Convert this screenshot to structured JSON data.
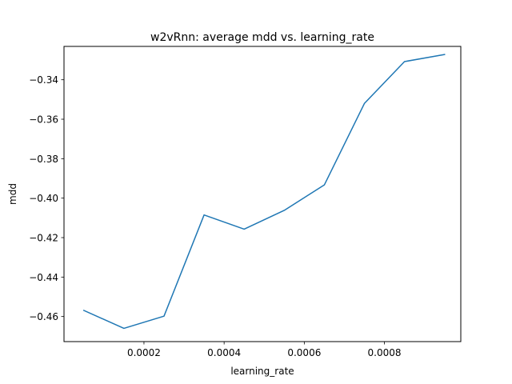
{
  "chart_data": {
    "type": "line",
    "title": "w2vRnn: average mdd vs. learning_rate",
    "xlabel": "learning_rate",
    "ylabel": "mdd",
    "xlim": [
      5e-07,
      0.0009905
    ],
    "ylim": [
      -0.4727,
      -0.3231
    ],
    "grid": false,
    "xticks": [
      {
        "value": 0.0002,
        "label": "0.0002"
      },
      {
        "value": 0.0004,
        "label": "0.0004"
      },
      {
        "value": 0.0006,
        "label": "0.0006"
      },
      {
        "value": 0.0008,
        "label": "0.0008"
      }
    ],
    "yticks": [
      {
        "value": -0.46,
        "label": "−0.46"
      },
      {
        "value": -0.44,
        "label": "−0.44"
      },
      {
        "value": -0.42,
        "label": "−0.42"
      },
      {
        "value": -0.4,
        "label": "−0.40"
      },
      {
        "value": -0.38,
        "label": "−0.38"
      },
      {
        "value": -0.36,
        "label": "−0.36"
      },
      {
        "value": -0.34,
        "label": "−0.34"
      }
    ],
    "series": [
      {
        "color": "#1f77b4",
        "x": [
          5e-05,
          0.00015,
          0.00025,
          0.00035,
          0.00045,
          0.00055,
          0.00065,
          0.00075,
          0.00085,
          0.00095
        ],
        "y": [
          -0.4569,
          -0.466,
          -0.4598,
          -0.4085,
          -0.4157,
          -0.4062,
          -0.3933,
          -0.352,
          -0.3308,
          -0.3272
        ]
      }
    ]
  }
}
